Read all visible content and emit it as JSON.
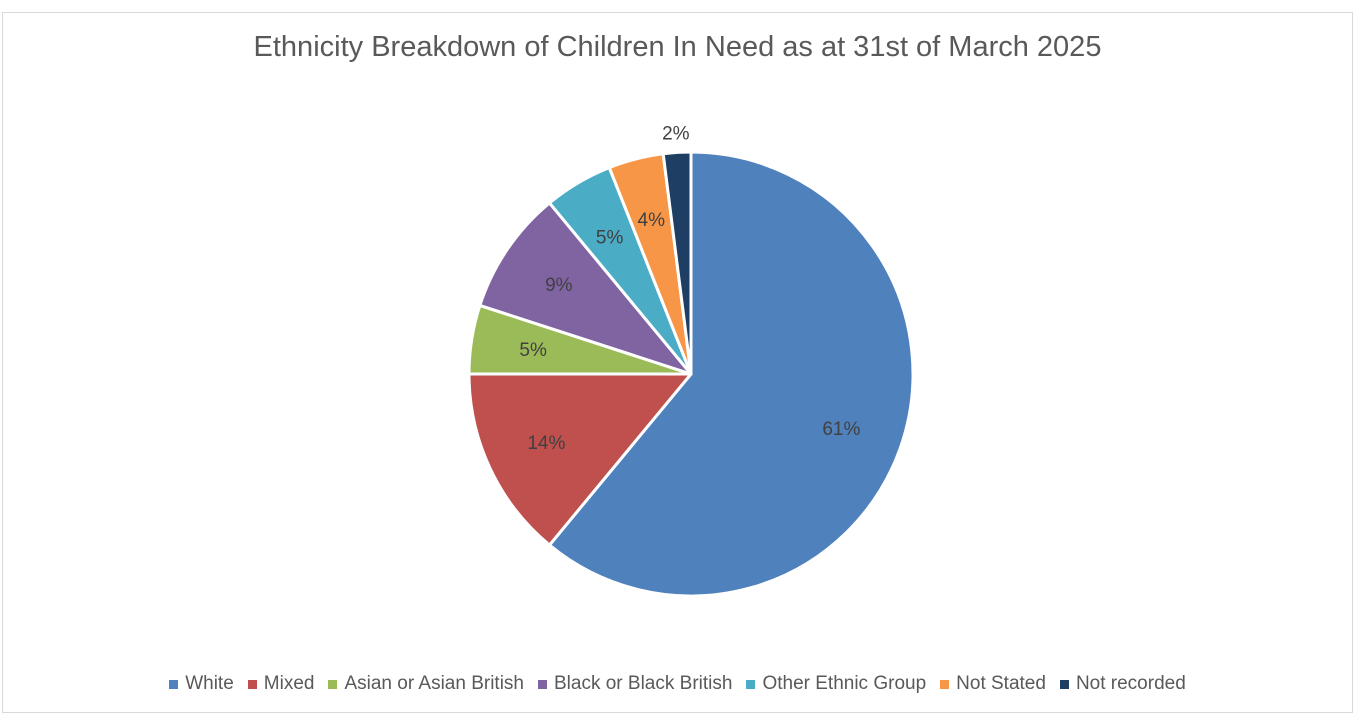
{
  "chart_data": {
    "type": "pie",
    "title": "Ethnicity Breakdown of Children In Need as at 31st of March 2025",
    "legend_position": "bottom",
    "categories": [
      "White",
      "Mixed",
      "Asian or Asian British",
      "Black or Black British",
      "Other Ethnic Group",
      "Not Stated",
      "Not recorded"
    ],
    "values": [
      61,
      14,
      5,
      9,
      5,
      4,
      2
    ],
    "labels": [
      "61%",
      "14%",
      "5%",
      "9%",
      "5%",
      "4%",
      "2%"
    ],
    "colors": [
      "#4f81bd",
      "#c0504d",
      "#9bbb59",
      "#8064a2",
      "#4bacc6",
      "#f79646",
      "#1f3e64"
    ],
    "label_color": "#404040"
  }
}
